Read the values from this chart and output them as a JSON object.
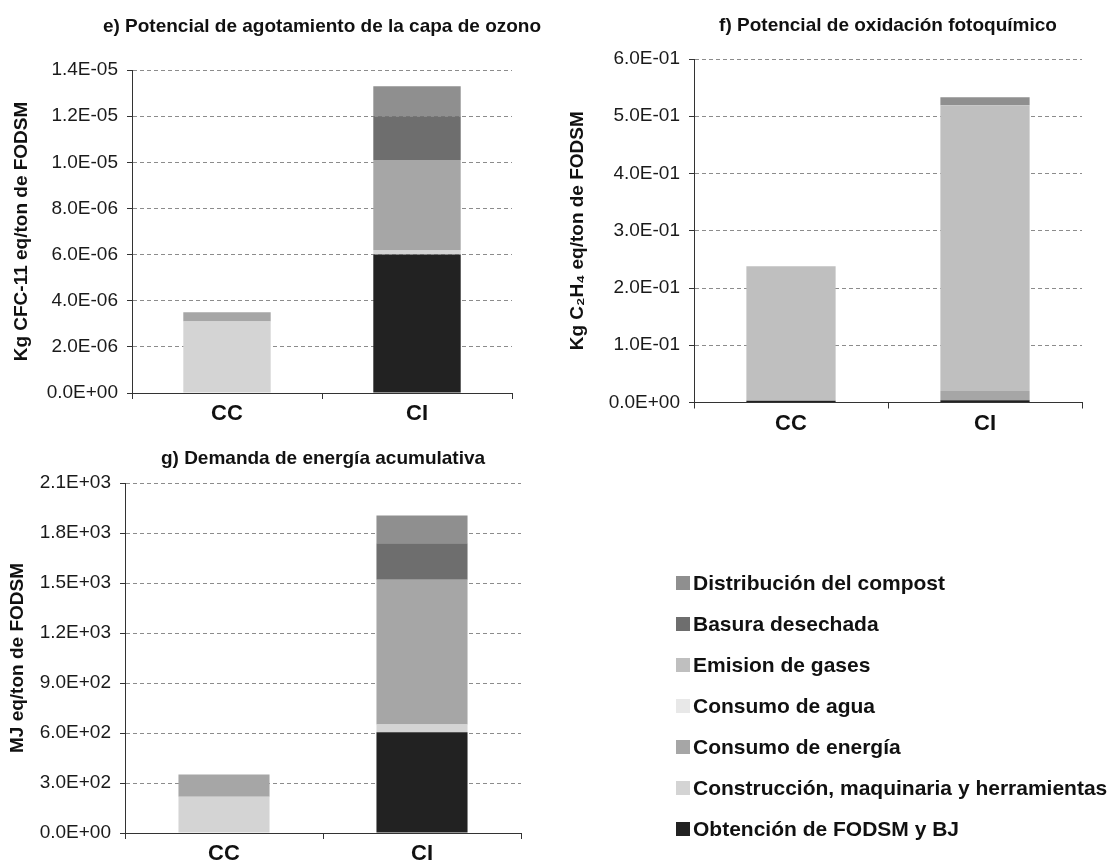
{
  "chart_data": [
    {
      "type": "bar",
      "stacked": true,
      "title": "e) Potencial de agotamiento de la capa de ozono",
      "ylabel": "Kg CFC-11 eq/ton de FODSM",
      "categories": [
        "CC",
        "CI"
      ],
      "series": [
        {
          "color": "#222222",
          "values": [
            null,
            6e-06
          ]
        },
        {
          "color": "#d4d4d4",
          "values": [
            3.1e-06,
            2e-07
          ]
        },
        {
          "color": "#a6a6a6",
          "values": [
            4e-07,
            3.9e-06
          ]
        },
        {
          "color": "#6e6e6e",
          "values": [
            null,
            1.9e-06
          ]
        },
        {
          "color": "#8f8f8f",
          "values": [
            null,
            1.3e-06
          ]
        }
      ],
      "ylim": [
        0,
        1.4e-05
      ],
      "yticks": [
        {
          "value": 0,
          "label": "0.0E+00"
        },
        {
          "value": 2e-06,
          "label": "2.0E-06"
        },
        {
          "value": 4e-06,
          "label": "4.0E-06"
        },
        {
          "value": 6e-06,
          "label": "6.0E-06"
        },
        {
          "value": 8e-06,
          "label": "8.0E-06"
        },
        {
          "value": 1e-05,
          "label": "1.0E-05"
        },
        {
          "value": 1.2e-05,
          "label": "1.2E-05"
        },
        {
          "value": 1.4e-05,
          "label": "1.4E-05"
        }
      ],
      "grid": "y"
    },
    {
      "type": "bar",
      "stacked": true,
      "title": "f) Potencial de oxidación fotoquímico",
      "ylabel": "Kg C₂H₄ eq/ton de FODSM",
      "categories": [
        "CC",
        "CI"
      ],
      "series": [
        {
          "color": "#222222",
          "values": [
            0.003,
            0.004
          ]
        },
        {
          "color": "#a6a6a6",
          "values": [
            null,
            0.016
          ]
        },
        {
          "color": "#bfbfbf",
          "values": [
            0.235,
            0.499
          ]
        },
        {
          "color": "#8f8f8f",
          "values": [
            null,
            0.014
          ]
        }
      ],
      "ylim": [
        0,
        0.6
      ],
      "yticks": [
        {
          "value": 0,
          "label": "0.0E+00"
        },
        {
          "value": 0.1,
          "label": "1.0E-01"
        },
        {
          "value": 0.2,
          "label": "2.0E-01"
        },
        {
          "value": 0.3,
          "label": "3.0E-01"
        },
        {
          "value": 0.4,
          "label": "4.0E-01"
        },
        {
          "value": 0.5,
          "label": "5.0E-01"
        },
        {
          "value": 0.6,
          "label": "6.0E-01"
        }
      ],
      "grid": "y"
    },
    {
      "type": "bar",
      "stacked": true,
      "title": "g) Demanda de energía acumulativa",
      "ylabel": "MJ eq/ton de FODSM",
      "categories": [
        "CC",
        "CI"
      ],
      "series": [
        {
          "name": "Obtención de FODSM y BJ",
          "color": "#222222",
          "values": [
            null,
            604
          ]
        },
        {
          "name": "Construcción, maquinaria y herramientas",
          "color": "#d4d4d4",
          "values": [
            218,
            47
          ]
        },
        {
          "name": "Consumo de energía",
          "color": "#a6a6a6",
          "values": [
            133,
            869
          ]
        },
        {
          "name": "Consumo de agua",
          "color": "#e8e8e8",
          "values": [
            null,
            null
          ]
        },
        {
          "name": "Emision de gases",
          "color": "#bfbfbf",
          "values": [
            null,
            null
          ]
        },
        {
          "name": "Basura desechada",
          "color": "#6e6e6e",
          "values": [
            null,
            218
          ]
        },
        {
          "name": "Distribución del compost",
          "color": "#8f8f8f",
          "values": [
            null,
            167
          ]
        }
      ],
      "ylim": [
        0,
        2100
      ],
      "yticks": [
        {
          "value": 0,
          "label": "0.0E+00"
        },
        {
          "value": 300,
          "label": "3.0E+02"
        },
        {
          "value": 600,
          "label": "6.0E+02"
        },
        {
          "value": 900,
          "label": "9.0E+02"
        },
        {
          "value": 1200,
          "label": "1.2E+03"
        },
        {
          "value": 1500,
          "label": "1.5E+03"
        },
        {
          "value": 1800,
          "label": "1.8E+03"
        },
        {
          "value": 2100,
          "label": "2.1E+03"
        }
      ],
      "grid": "y",
      "legend": "right"
    }
  ]
}
